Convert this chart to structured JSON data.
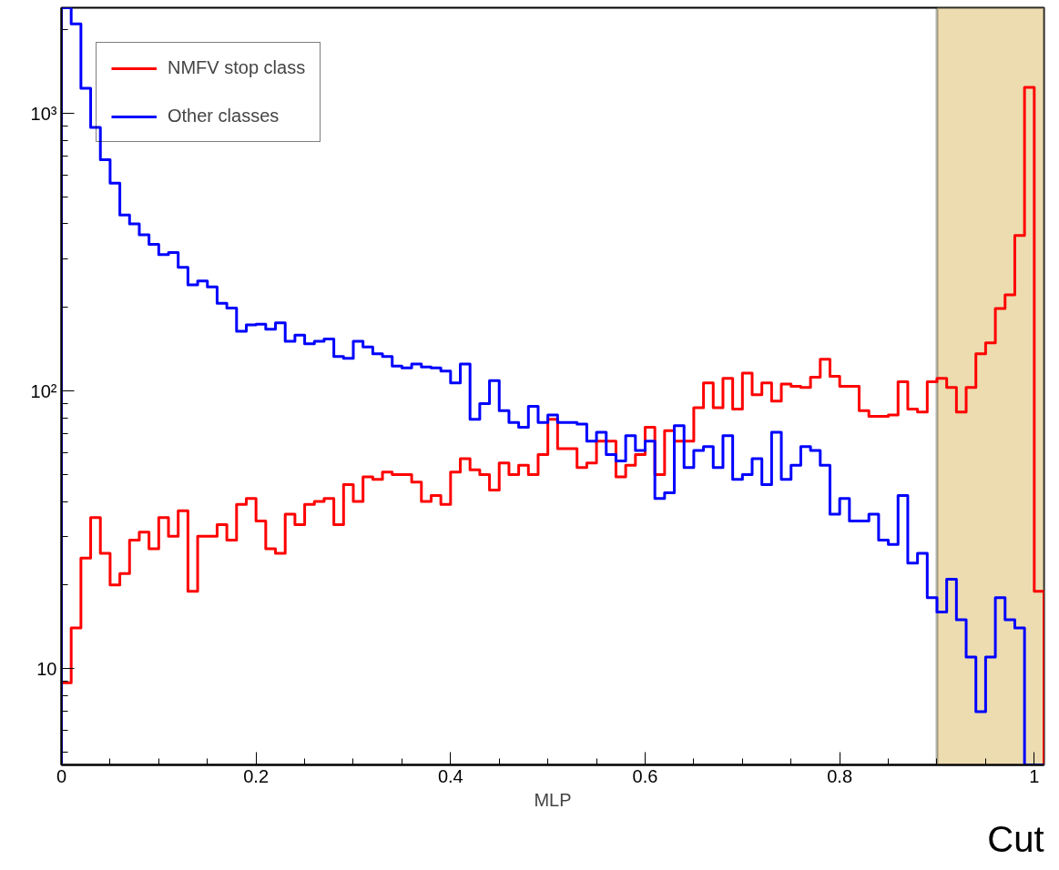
{
  "chart_data": {
    "type": "histogram",
    "xlabel": "MLP",
    "bins": [
      0,
      0.01,
      0.02,
      0.03,
      0.04,
      0.05,
      0.06,
      0.07,
      0.08,
      0.09,
      0.1,
      0.11,
      0.12,
      0.13,
      0.14,
      0.15,
      0.16,
      0.17,
      0.18,
      0.19,
      0.2,
      0.21,
      0.22,
      0.23,
      0.24,
      0.25,
      0.26,
      0.27,
      0.28,
      0.29,
      0.3,
      0.31,
      0.32,
      0.33,
      0.34,
      0.35,
      0.36,
      0.37,
      0.38,
      0.39,
      0.4,
      0.41,
      0.42,
      0.43,
      0.44,
      0.45,
      0.46,
      0.47,
      0.48,
      0.49,
      0.5,
      0.51,
      0.52,
      0.53,
      0.54,
      0.55,
      0.56,
      0.57,
      0.58,
      0.59,
      0.6,
      0.61,
      0.62,
      0.63,
      0.64,
      0.65,
      0.66,
      0.67,
      0.68,
      0.69,
      0.7,
      0.71,
      0.72,
      0.73,
      0.74,
      0.75,
      0.76,
      0.77,
      0.78,
      0.79,
      0.8,
      0.81,
      0.82,
      0.83,
      0.84,
      0.85,
      0.86,
      0.87,
      0.88,
      0.89,
      0.9,
      0.91,
      0.92,
      0.93,
      0.94,
      0.95,
      0.96,
      0.97,
      0.98,
      0.99,
      1.0,
      1.01
    ],
    "series": [
      {
        "name": "NMFV stop class",
        "color": "#ff0000",
        "values": [
          8.9,
          14,
          25,
          35,
          26,
          20,
          22,
          29,
          31,
          27,
          35,
          30,
          37,
          19,
          30,
          30,
          33,
          29,
          39,
          41,
          34,
          27,
          26,
          36,
          33,
          39,
          40,
          41,
          33,
          46,
          40,
          49,
          48,
          51,
          50,
          50,
          47,
          40,
          42,
          39,
          51,
          57,
          52,
          50,
          44,
          55,
          50,
          54,
          50,
          59,
          79,
          62,
          62,
          53,
          55,
          66,
          66,
          49,
          54,
          59,
          74,
          50,
          72,
          66,
          66,
          87,
          107,
          87,
          111,
          86,
          116,
          97,
          107,
          92,
          106,
          104,
          103,
          112,
          130,
          113,
          104,
          104,
          85,
          81,
          81,
          82,
          108,
          86,
          84,
          108,
          111,
          103,
          84,
          103,
          136,
          149,
          198,
          222,
          363,
          1240,
          19
        ]
      },
      {
        "name": "Other classes",
        "color": "#0000ff",
        "values": [
          2400,
          2100,
          1230,
          890,
          680,
          560,
          430,
          400,
          365,
          337,
          310,
          315,
          279,
          241,
          249,
          237,
          207,
          199,
          164,
          173,
          174,
          167,
          176,
          151,
          159,
          148,
          151,
          154,
          133,
          131,
          151,
          144,
          136,
          133,
          123,
          121,
          125,
          122,
          121,
          118,
          107,
          125,
          79,
          90,
          109,
          85,
          77,
          74,
          88,
          77,
          82,
          77,
          77,
          76,
          66,
          71,
          59,
          56,
          69,
          61,
          66,
          41,
          43,
          75,
          53,
          61,
          63,
          53,
          69,
          48,
          50,
          57,
          46,
          71,
          48,
          54,
          63,
          61,
          54,
          36,
          41,
          34,
          34,
          36,
          29,
          28,
          42,
          24,
          26,
          18,
          16,
          21,
          15,
          11,
          7,
          11,
          18,
          15,
          14,
          null,
          null
        ]
      }
    ],
    "xlim": [
      0,
      1.01
    ],
    "ylim": [
      4.5,
      2400
    ],
    "log": "y",
    "xticks": [
      0,
      {
        "value": 0.2,
        "label": "0.2"
      },
      {
        "value": 0.4,
        "label": "0.4"
      },
      {
        "value": 0.6,
        "label": "0.6"
      },
      {
        "value": 0.8,
        "label": "0.8"
      },
      1
    ],
    "yticks": [
      10,
      {
        "value": 100,
        "label": "10²"
      },
      {
        "value": 1000,
        "label": "10³"
      }
    ],
    "bands": [
      {
        "axis": "x",
        "from": 0.9,
        "to": 1.01,
        "label": "Cut",
        "color": "#ecdcb0"
      }
    ],
    "legend": "top left",
    "grid": false
  }
}
